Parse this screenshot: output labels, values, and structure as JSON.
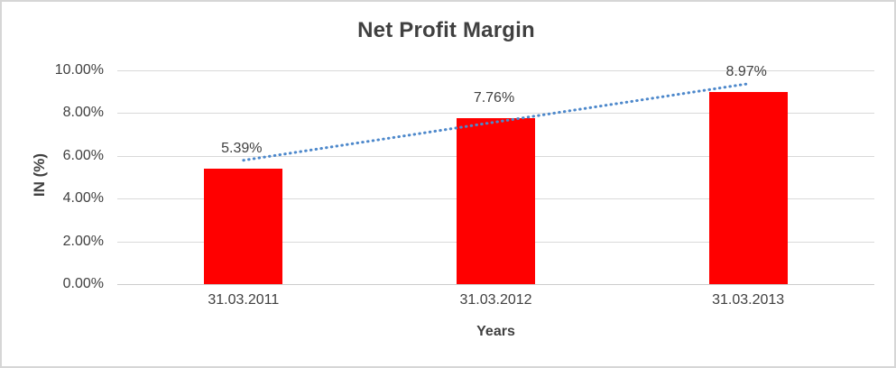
{
  "window": {
    "background_color": "#ffffff",
    "border_color": "#d6d6d6"
  },
  "chart_data": {
    "type": "bar",
    "title": "Net Profit Margin",
    "categories": [
      "31.03.2011",
      "31.03.2012",
      "31.03.2013"
    ],
    "values": [
      5.39,
      7.76,
      8.97
    ],
    "data_labels": [
      "5.39%",
      "7.76%",
      "8.97%"
    ],
    "xlabel": "Years",
    "ylabel": "IN (%)",
    "ylim": [
      0,
      10
    ],
    "ytick_step": 2,
    "ytick_labels": [
      "10.00%",
      "8.00%",
      "6.00%",
      "4.00%",
      "2.00%",
      "0.00%"
    ],
    "grid": true,
    "legend_position": "none",
    "bar_color": "#ff0000",
    "trendline": {
      "type": "linear",
      "style": "dotted",
      "color": "#4d88cb",
      "spans": "first-to-last-category-center"
    },
    "text_color": "#404040",
    "gridline_color": "#d9d9d9"
  }
}
